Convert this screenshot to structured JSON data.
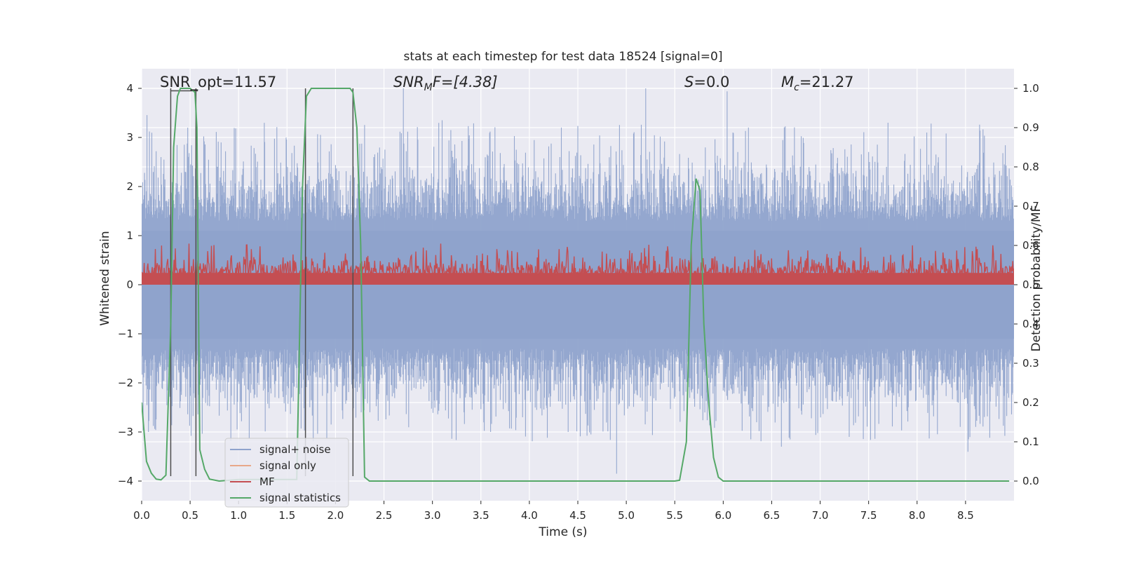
{
  "chart_data": {
    "type": "line",
    "title": "stats at each timestep for test data 18524 [signal=0]",
    "xlabel": "Time (s)",
    "ylabel": "Whitened strain",
    "y2label": "Detection probability/MF",
    "xlim": [
      0.0,
      9.0
    ],
    "ylim": [
      -4.4,
      4.4
    ],
    "y2lim": [
      -0.05,
      1.05
    ],
    "xticks": [
      "0.0",
      "0.5",
      "1.0",
      "1.5",
      "2.0",
      "2.5",
      "3.0",
      "3.5",
      "4.0",
      "4.5",
      "5.0",
      "5.5",
      "6.0",
      "6.5",
      "7.0",
      "7.5",
      "8.0",
      "8.5"
    ],
    "yticks": [
      "−4",
      "−3",
      "−2",
      "−1",
      "0",
      "1",
      "2",
      "3",
      "4"
    ],
    "y2ticks": [
      "0.0",
      "0.1",
      "0.2",
      "0.3",
      "0.4",
      "0.5",
      "0.6",
      "0.7",
      "0.8",
      "0.9",
      "1.0"
    ],
    "grid": true,
    "legend_position": "lower-left",
    "annotations": {
      "snr_opt": "SNR_opt=11.57",
      "snr_mf_prefix": "SNR",
      "snr_mf_sub": "M",
      "snr_mf_suffix": "F=[4.38]",
      "s_symbol": "S",
      "s_value": "=0.0",
      "mc_symbol": "M",
      "mc_sub": "c",
      "mc_value": "=21.27"
    },
    "series": [
      {
        "name": "signal+ noise",
        "color": "#8fa3cc",
        "description": "noisy whitened strain, envelope approx ±1.6 with peaks to ±4"
      },
      {
        "name": "signal only",
        "color": "#e8a889",
        "values": []
      },
      {
        "name": "MF",
        "color": "#c44e52",
        "axis": "right",
        "range": [
          0.5,
          0.6
        ]
      },
      {
        "name": "signal statistics",
        "color": "#55a868",
        "axis": "right",
        "x": [
          0.0,
          0.05,
          0.1,
          0.15,
          0.2,
          0.25,
          0.3,
          0.33,
          0.37,
          0.4,
          0.45,
          0.5,
          0.55,
          0.57,
          0.6,
          0.65,
          0.7,
          0.8,
          0.9,
          1.0,
          1.1,
          1.2,
          1.3,
          1.4,
          1.5,
          1.6,
          1.66,
          1.7,
          1.75,
          1.8,
          1.9,
          2.0,
          2.1,
          2.15,
          2.18,
          2.22,
          2.26,
          2.3,
          2.35,
          2.4,
          2.5,
          3.0,
          3.5,
          4.0,
          4.5,
          5.0,
          5.5,
          5.55,
          5.62,
          5.67,
          5.72,
          5.76,
          5.8,
          5.85,
          5.9,
          5.95,
          6.0,
          6.05,
          6.5,
          7.0,
          7.5,
          8.0,
          8.5,
          8.95
        ],
        "values": [
          0.2,
          0.05,
          0.02,
          0.005,
          0.003,
          0.015,
          0.4,
          0.85,
          0.98,
          1.0,
          1.0,
          1.0,
          0.99,
          0.9,
          0.08,
          0.03,
          0.005,
          0.0,
          0.002,
          0.004,
          0.004,
          0.004,
          0.004,
          0.004,
          0.004,
          0.004,
          0.75,
          0.98,
          1.0,
          1.0,
          1.0,
          1.0,
          1.0,
          1.0,
          0.99,
          0.9,
          0.6,
          0.01,
          0.0,
          0.0,
          0.0,
          0.0,
          0.0,
          0.0,
          0.0,
          0.0,
          0.0,
          0.002,
          0.1,
          0.6,
          0.77,
          0.74,
          0.4,
          0.2,
          0.06,
          0.01,
          0.0,
          0.0,
          0.0,
          0.0,
          0.0,
          0.0,
          0.0,
          0.0
        ]
      }
    ],
    "vertical_markers": [
      0.3,
      0.56,
      1.69,
      2.18
    ]
  },
  "colors": {
    "plot_bg": "#eaeaf2",
    "grid": "#ffffff",
    "text": "#262626",
    "marker": "#4d4d4d"
  }
}
